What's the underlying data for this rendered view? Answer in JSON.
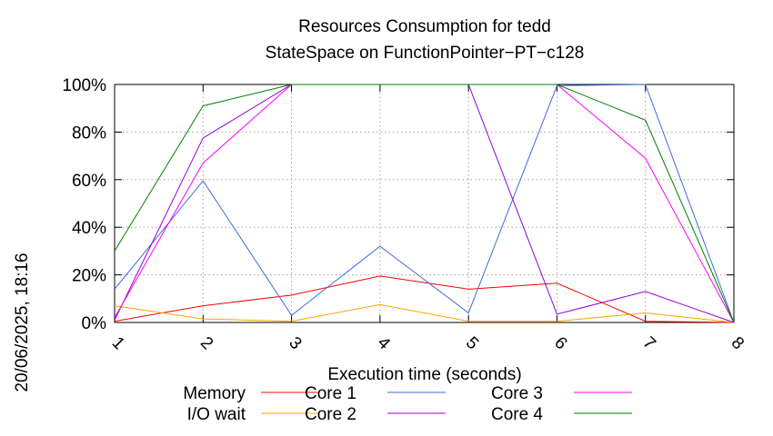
{
  "chart_data": {
    "type": "line",
    "title": "Resources Consumption for tedd",
    "subtitle": "StateSpace on FunctionPointer−PT−c128",
    "xlabel": "Execution time (seconds)",
    "ylabel": "",
    "side_label": "20/06/2025, 18:16",
    "x": [
      1,
      2,
      3,
      4,
      5,
      6,
      7,
      8
    ],
    "xlim": [
      1,
      8
    ],
    "ylim": [
      0,
      100
    ],
    "y_ticks": [
      "0%",
      "20%",
      "40%",
      "60%",
      "80%",
      "100%"
    ],
    "y_tick_values": [
      0,
      20,
      40,
      60,
      80,
      100
    ],
    "x_ticks": [
      "1",
      "2",
      "3",
      "4",
      "5",
      "6",
      "7",
      "8"
    ],
    "grid": true,
    "legend_position": "bottom",
    "series": [
      {
        "name": "Memory",
        "color": "#ff0000",
        "values": [
          0.5,
          7,
          11.5,
          19.5,
          14,
          16.5,
          0.5,
          0
        ]
      },
      {
        "name": "I/O wait",
        "color": "#ffa500",
        "values": [
          7,
          1.5,
          0.5,
          7.5,
          0.5,
          0.5,
          4,
          0
        ]
      },
      {
        "name": "Core 1",
        "color": "#4169e1",
        "values": [
          14,
          59.5,
          3,
          32,
          4,
          99.5,
          100,
          0
        ]
      },
      {
        "name": "Core 2",
        "color": "#9400d3",
        "values": [
          1,
          77.5,
          100,
          100,
          100,
          3.5,
          13,
          0
        ]
      },
      {
        "name": "Core 3",
        "color": "#ff00ff",
        "values": [
          2,
          67,
          100,
          100,
          100,
          100,
          69,
          0
        ]
      },
      {
        "name": "Core 4",
        "color": "#008000",
        "values": [
          30,
          91,
          100,
          100,
          100,
          100,
          85,
          0
        ]
      }
    ]
  }
}
